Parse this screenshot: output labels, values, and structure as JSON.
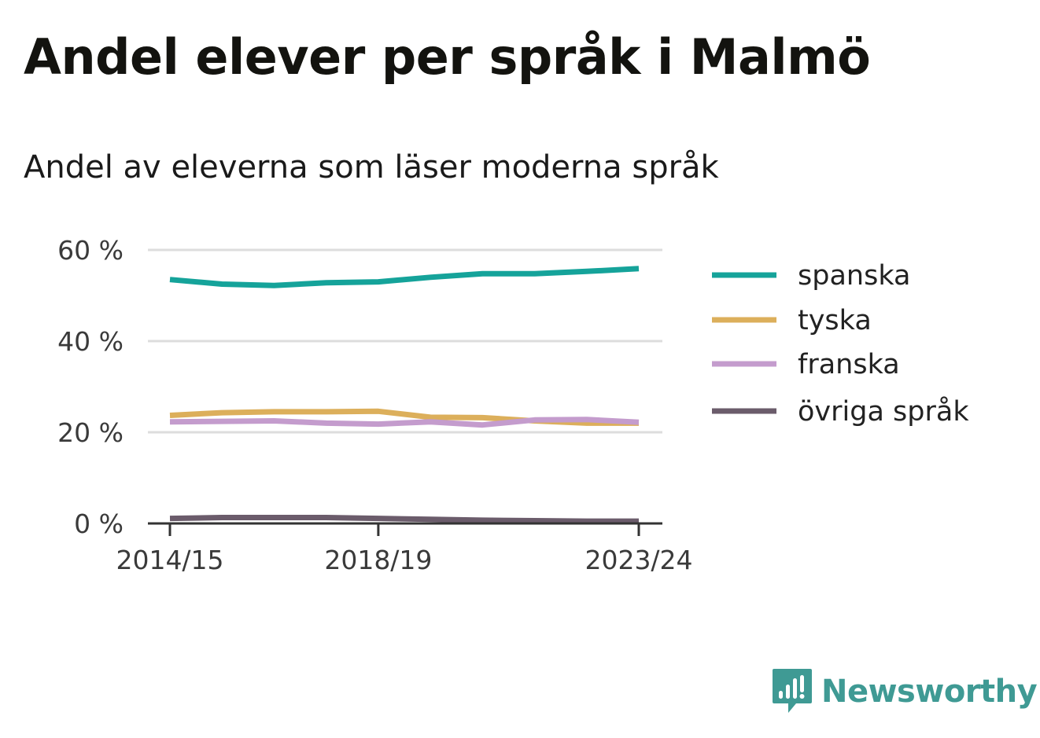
{
  "header": {
    "title": "Andel elever per språk i Malmö",
    "subtitle": "Andel av eleverna som läser moderna språk"
  },
  "brand": {
    "name": "Newsworthy",
    "icon": "newsworthy-logo-icon",
    "color": "#3f9a94"
  },
  "chart_data": {
    "type": "line",
    "x_count": 10,
    "x_tick_labels": [
      {
        "index": 0,
        "label": "2014/15"
      },
      {
        "index": 4,
        "label": "2018/19"
      },
      {
        "index": 9,
        "label": "2023/24"
      }
    ],
    "y_ticks": [
      0,
      20,
      40,
      60
    ],
    "y_tick_labels": [
      "0 %",
      "20 %",
      "40 %",
      "60 %"
    ],
    "ylim": [
      0,
      60
    ],
    "grid": true,
    "legend_position": "right",
    "series": [
      {
        "name": "spanska",
        "color": "#15a39a",
        "values": [
          53.5,
          52.5,
          52.2,
          52.8,
          53.0,
          54.0,
          54.8,
          54.8,
          55.3,
          55.9
        ]
      },
      {
        "name": "tyska",
        "color": "#dcaf5b",
        "values": [
          23.7,
          24.3,
          24.5,
          24.5,
          24.6,
          23.3,
          23.2,
          22.5,
          22.0,
          22.0
        ]
      },
      {
        "name": "franska",
        "color": "#c49ccd",
        "values": [
          22.3,
          22.4,
          22.5,
          22.0,
          21.8,
          22.3,
          21.6,
          22.7,
          22.8,
          22.2
        ]
      },
      {
        "name": "övriga språk",
        "color": "#6b5c6b",
        "values": [
          1.1,
          1.3,
          1.3,
          1.3,
          1.1,
          0.9,
          0.7,
          0.6,
          0.5,
          0.5
        ]
      }
    ]
  }
}
